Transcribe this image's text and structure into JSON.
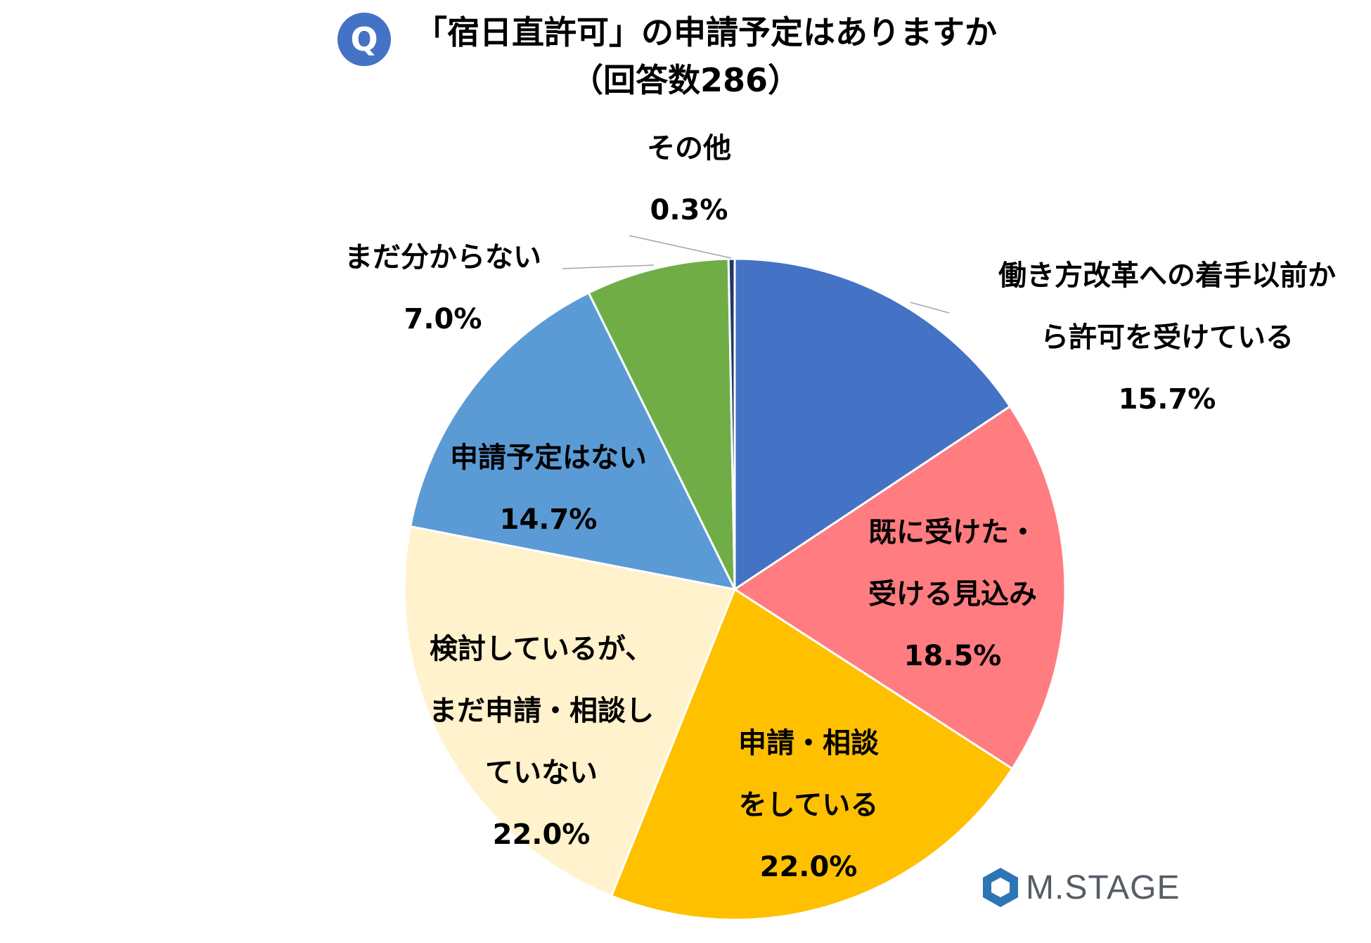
{
  "header": {
    "badge": "Q",
    "title": "「宿日直許可」の申請予定はありますか",
    "subtitle": "（回答数286）"
  },
  "chart_data": {
    "type": "pie",
    "title": "「宿日直許可」の申請予定はありますか",
    "subtitle": "（回答数286）",
    "start": "12 o'clock, clockwise",
    "slices": [
      {
        "label_lines": [
          "働き方改革への着手以前か",
          "ら許可を受けている"
        ],
        "pct_label": "15.7%",
        "value": 15.7,
        "color": "#4472c4"
      },
      {
        "label_lines": [
          "既に受けた・",
          "受ける見込み"
        ],
        "pct_label": "18.5%",
        "value": 18.5,
        "color": "#ff7c80"
      },
      {
        "label_lines": [
          "申請・相談",
          "をしている"
        ],
        "pct_label": "22.0%",
        "value": 22.0,
        "color": "#ffc000"
      },
      {
        "label_lines": [
          "検討しているが、",
          "まだ申請・相談し",
          "ていない"
        ],
        "pct_label": "22.0%",
        "value": 22.0,
        "color": "#fff2cc"
      },
      {
        "label_lines": [
          "申請予定はない"
        ],
        "pct_label": "14.7%",
        "value": 14.7,
        "color": "#5b9bd5"
      },
      {
        "label_lines": [
          "まだ分からない"
        ],
        "pct_label": "7.0%",
        "value": 7.0,
        "color": "#70ad47"
      },
      {
        "label_lines": [
          "その他"
        ],
        "pct_label": "0.3%",
        "value": 0.3,
        "color": "#203864"
      }
    ]
  },
  "logo": {
    "text": "M.STAGE",
    "mark_color": "#2e75b6"
  }
}
